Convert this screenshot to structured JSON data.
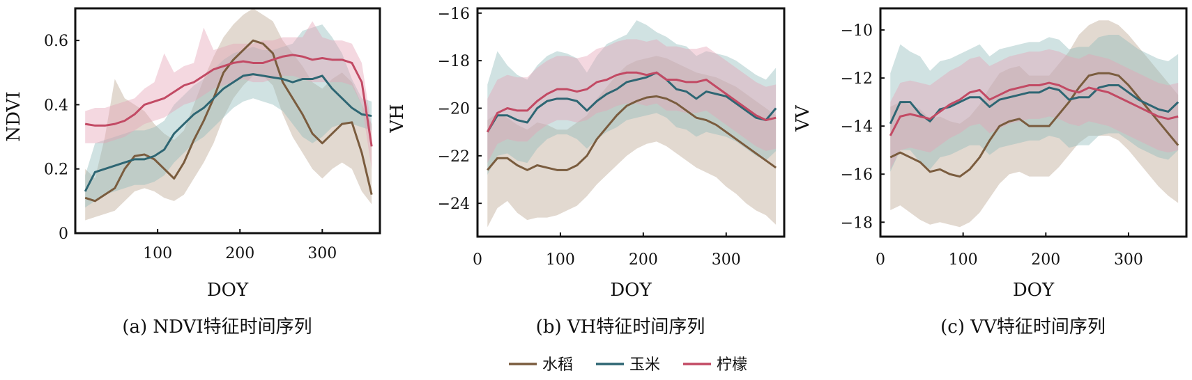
{
  "colors": {
    "rice": "#7a5c3e",
    "corn": "#2e6673",
    "lemon": "#c24a64",
    "rice_band": "#b9a58e",
    "corn_band": "#8fb9bb",
    "lemon_band": "#e4a3b4"
  },
  "legend": {
    "items": [
      {
        "key": "rice",
        "label": "水稻"
      },
      {
        "key": "corn",
        "label": "玉米"
      },
      {
        "key": "lemon",
        "label": "柠檬"
      }
    ]
  },
  "chart_data": [
    {
      "type": "line",
      "caption": "(a) NDVI特征时间序列",
      "xlabel": "DOY",
      "ylabel": "NDVI",
      "xlim": [
        0,
        370
      ],
      "ylim": [
        0,
        0.7
      ],
      "xticks": [
        100,
        200,
        300
      ],
      "yticks": [
        0,
        0.2,
        0.4,
        0.6
      ],
      "ytick_labels": [
        "0",
        "0.2",
        "0.4",
        "0.6"
      ],
      "x": [
        12,
        24,
        36,
        48,
        60,
        72,
        84,
        96,
        108,
        120,
        132,
        144,
        156,
        168,
        180,
        192,
        204,
        216,
        228,
        240,
        252,
        264,
        276,
        288,
        300,
        312,
        324,
        336,
        348,
        360
      ],
      "series": [
        {
          "key": "rice",
          "values": [
            0.11,
            0.1,
            0.12,
            0.14,
            0.2,
            0.24,
            0.245,
            0.23,
            0.2,
            0.17,
            0.22,
            0.29,
            0.35,
            0.42,
            0.5,
            0.54,
            0.57,
            0.6,
            0.59,
            0.56,
            0.47,
            0.42,
            0.37,
            0.31,
            0.28,
            0.31,
            0.34,
            0.345,
            0.25,
            0.12
          ],
          "lower": [
            0.04,
            0.05,
            0.06,
            0.07,
            0.1,
            0.13,
            0.14,
            0.13,
            0.11,
            0.1,
            0.12,
            0.17,
            0.22,
            0.28,
            0.36,
            0.42,
            0.46,
            0.49,
            0.49,
            0.46,
            0.37,
            0.3,
            0.25,
            0.2,
            0.17,
            0.2,
            0.22,
            0.2,
            0.13,
            0.09
          ],
          "upper": [
            0.2,
            0.17,
            0.3,
            0.48,
            0.42,
            0.4,
            0.38,
            0.34,
            0.31,
            0.29,
            0.32,
            0.4,
            0.48,
            0.55,
            0.61,
            0.65,
            0.68,
            0.7,
            0.68,
            0.66,
            0.6,
            0.56,
            0.52,
            0.47,
            0.45,
            0.48,
            0.5,
            0.47,
            0.4,
            0.34
          ]
        },
        {
          "key": "corn",
          "values": [
            0.13,
            0.19,
            0.2,
            0.21,
            0.22,
            0.23,
            0.23,
            0.24,
            0.26,
            0.31,
            0.34,
            0.37,
            0.39,
            0.42,
            0.45,
            0.47,
            0.49,
            0.495,
            0.49,
            0.485,
            0.48,
            0.47,
            0.48,
            0.48,
            0.49,
            0.45,
            0.42,
            0.39,
            0.37,
            0.365
          ],
          "lower": [
            0.08,
            0.1,
            0.12,
            0.13,
            0.14,
            0.15,
            0.15,
            0.16,
            0.18,
            0.22,
            0.25,
            0.28,
            0.3,
            0.33,
            0.36,
            0.39,
            0.41,
            0.42,
            0.41,
            0.4,
            0.38,
            0.34,
            0.3,
            0.28,
            0.3,
            0.33,
            0.34,
            0.34,
            0.33,
            0.32
          ],
          "upper": [
            0.18,
            0.28,
            0.29,
            0.3,
            0.31,
            0.32,
            0.32,
            0.33,
            0.35,
            0.4,
            0.43,
            0.46,
            0.48,
            0.51,
            0.54,
            0.56,
            0.57,
            0.58,
            0.57,
            0.57,
            0.58,
            0.59,
            0.63,
            0.64,
            0.65,
            0.61,
            0.56,
            0.48,
            0.42,
            0.41
          ]
        },
        {
          "key": "lemon",
          "values": [
            0.34,
            0.335,
            0.335,
            0.34,
            0.35,
            0.37,
            0.4,
            0.41,
            0.42,
            0.44,
            0.46,
            0.47,
            0.49,
            0.51,
            0.52,
            0.53,
            0.535,
            0.53,
            0.53,
            0.54,
            0.55,
            0.555,
            0.55,
            0.54,
            0.545,
            0.54,
            0.54,
            0.53,
            0.47,
            0.27
          ],
          "lower": [
            0.28,
            0.28,
            0.28,
            0.29,
            0.3,
            0.32,
            0.34,
            0.35,
            0.36,
            0.38,
            0.4,
            0.41,
            0.43,
            0.45,
            0.46,
            0.47,
            0.48,
            0.47,
            0.47,
            0.48,
            0.49,
            0.49,
            0.48,
            0.47,
            0.47,
            0.47,
            0.47,
            0.46,
            0.4,
            0.2
          ],
          "upper": [
            0.38,
            0.39,
            0.39,
            0.4,
            0.41,
            0.42,
            0.45,
            0.47,
            0.56,
            0.5,
            0.52,
            0.53,
            0.64,
            0.57,
            0.58,
            0.59,
            0.59,
            0.59,
            0.6,
            0.6,
            0.61,
            0.61,
            0.61,
            0.66,
            0.61,
            0.6,
            0.6,
            0.59,
            0.53,
            0.33
          ]
        }
      ]
    },
    {
      "type": "line",
      "caption": "(b) VH特征时间序列",
      "xlabel": "DOY",
      "ylabel": "VH",
      "xlim": [
        0,
        370
      ],
      "ylim": [
        -25.4,
        -15.8
      ],
      "xticks": [
        0,
        100,
        200,
        300
      ],
      "yticks": [
        -24,
        -22,
        -20,
        -18,
        -16
      ],
      "ytick_labels": [
        "−24",
        "−22",
        "−20",
        "−18",
        "−16"
      ],
      "x": [
        12,
        24,
        36,
        48,
        60,
        72,
        84,
        96,
        108,
        120,
        132,
        144,
        156,
        168,
        180,
        192,
        204,
        216,
        228,
        240,
        252,
        264,
        276,
        288,
        300,
        312,
        324,
        336,
        348,
        360
      ],
      "series": [
        {
          "key": "rice",
          "values": [
            -22.6,
            -22.1,
            -22.1,
            -22.4,
            -22.6,
            -22.4,
            -22.5,
            -22.6,
            -22.6,
            -22.4,
            -22.0,
            -21.3,
            -20.8,
            -20.3,
            -19.9,
            -19.7,
            -19.55,
            -19.5,
            -19.6,
            -19.8,
            -20.1,
            -20.4,
            -20.5,
            -20.7,
            -21.0,
            -21.3,
            -21.6,
            -21.9,
            -22.2,
            -22.5
          ],
          "lower": [
            -25.0,
            -24.2,
            -23.9,
            -24.4,
            -24.7,
            -24.6,
            -24.6,
            -24.5,
            -24.3,
            -24.1,
            -23.7,
            -23.2,
            -22.8,
            -22.4,
            -22.0,
            -21.7,
            -21.5,
            -21.4,
            -21.6,
            -21.9,
            -22.2,
            -22.5,
            -22.7,
            -22.9,
            -23.3,
            -23.6,
            -24.0,
            -24.3,
            -24.5,
            -24.9
          ],
          "upper": [
            -20.5,
            -20.2,
            -20.4,
            -20.7,
            -20.9,
            -20.6,
            -20.7,
            -20.9,
            -20.9,
            -20.6,
            -20.3,
            -19.6,
            -19.1,
            -18.6,
            -18.2,
            -18.0,
            -17.9,
            -17.8,
            -17.9,
            -18.1,
            -18.3,
            -18.5,
            -18.6,
            -18.7,
            -18.9,
            -19.1,
            -19.4,
            -19.7,
            -20.0,
            -20.3
          ]
        },
        {
          "key": "corn",
          "values": [
            -21.0,
            -20.3,
            -20.3,
            -20.5,
            -20.6,
            -20.0,
            -19.7,
            -19.6,
            -19.6,
            -19.7,
            -20.1,
            -19.7,
            -19.4,
            -19.2,
            -18.9,
            -18.8,
            -18.7,
            -18.5,
            -18.8,
            -19.2,
            -19.3,
            -19.6,
            -19.3,
            -19.4,
            -19.5,
            -19.8,
            -20.1,
            -20.4,
            -20.5,
            -20.0
          ],
          "lower": [
            -22.8,
            -22.0,
            -21.9,
            -22.2,
            -22.3,
            -21.7,
            -21.3,
            -21.1,
            -21.1,
            -21.3,
            -21.7,
            -21.3,
            -21.0,
            -20.8,
            -20.5,
            -20.4,
            -20.3,
            -20.2,
            -20.4,
            -20.8,
            -20.9,
            -21.2,
            -21.0,
            -21.1,
            -21.2,
            -21.4,
            -21.7,
            -22.0,
            -22.2,
            -21.8
          ],
          "upper": [
            -19.0,
            -17.6,
            -18.2,
            -18.6,
            -18.8,
            -18.2,
            -17.8,
            -17.6,
            -17.7,
            -17.9,
            -18.5,
            -17.8,
            -17.3,
            -17.1,
            -16.9,
            -16.3,
            -16.5,
            -16.8,
            -17.0,
            -17.3,
            -17.4,
            -17.8,
            -17.6,
            -17.7,
            -17.8,
            -18.0,
            -18.3,
            -18.6,
            -18.8,
            -18.3
          ]
        },
        {
          "key": "lemon",
          "values": [
            -21.0,
            -20.2,
            -20.0,
            -20.1,
            -20.1,
            -19.7,
            -19.4,
            -19.2,
            -19.2,
            -19.3,
            -19.2,
            -18.9,
            -18.8,
            -18.6,
            -18.5,
            -18.5,
            -18.6,
            -18.5,
            -18.8,
            -18.8,
            -18.9,
            -18.9,
            -18.8,
            -19.1,
            -19.4,
            -19.7,
            -20.0,
            -20.3,
            -20.5,
            -20.4
          ],
          "lower": [
            -22.3,
            -21.5,
            -21.3,
            -21.4,
            -21.4,
            -21.0,
            -20.7,
            -20.5,
            -20.5,
            -20.6,
            -20.5,
            -20.2,
            -20.1,
            -19.9,
            -19.8,
            -19.8,
            -19.9,
            -19.8,
            -20.1,
            -20.1,
            -20.2,
            -20.2,
            -20.1,
            -20.4,
            -20.7,
            -21.0,
            -21.3,
            -21.6,
            -21.8,
            -21.7
          ],
          "upper": [
            -19.6,
            -18.8,
            -18.6,
            -18.7,
            -18.7,
            -18.3,
            -18.0,
            -17.8,
            -17.8,
            -17.9,
            -17.8,
            -17.5,
            -17.4,
            -17.2,
            -17.1,
            -17.1,
            -17.2,
            -17.1,
            -17.4,
            -17.4,
            -17.5,
            -17.5,
            -17.4,
            -17.7,
            -18.0,
            -18.3,
            -18.6,
            -18.9,
            -19.1,
            -19.0
          ]
        }
      ]
    },
    {
      "type": "line",
      "caption": "(c) VV特征时间序列",
      "xlabel": "DOY",
      "ylabel": "VV",
      "xlim": [
        0,
        370
      ],
      "ylim": [
        -18.6,
        -9.1
      ],
      "xticks": [
        0,
        100,
        200,
        300
      ],
      "yticks": [
        -18,
        -16,
        -14,
        -12,
        -10
      ],
      "ytick_labels": [
        "−18",
        "−16",
        "−14",
        "−12",
        "−10"
      ],
      "x": [
        12,
        24,
        36,
        48,
        60,
        72,
        84,
        96,
        108,
        120,
        132,
        144,
        156,
        168,
        180,
        192,
        204,
        216,
        228,
        240,
        252,
        264,
        276,
        288,
        300,
        312,
        324,
        336,
        348,
        360
      ],
      "series": [
        {
          "key": "rice",
          "values": [
            -15.3,
            -15.1,
            -15.3,
            -15.5,
            -15.9,
            -15.8,
            -16.0,
            -16.1,
            -15.8,
            -15.3,
            -14.6,
            -14.0,
            -13.8,
            -13.7,
            -14.0,
            -14.0,
            -14.0,
            -13.5,
            -13.0,
            -12.4,
            -11.9,
            -11.8,
            -11.8,
            -11.9,
            -12.3,
            -12.8,
            -13.3,
            -13.8,
            -14.3,
            -14.8
          ],
          "lower": [
            -17.5,
            -17.3,
            -17.6,
            -17.9,
            -18.1,
            -18.0,
            -18.1,
            -18.2,
            -18.0,
            -17.6,
            -17.0,
            -16.4,
            -16.0,
            -15.9,
            -16.1,
            -16.1,
            -16.1,
            -15.7,
            -15.2,
            -14.7,
            -14.4,
            -14.4,
            -14.4,
            -14.6,
            -15.0,
            -15.5,
            -16.0,
            -16.5,
            -16.9,
            -17.2
          ],
          "upper": [
            -13.2,
            -13.0,
            -13.1,
            -13.3,
            -13.7,
            -13.6,
            -13.8,
            -13.9,
            -13.6,
            -13.1,
            -12.4,
            -11.8,
            -11.6,
            -11.5,
            -11.9,
            -11.9,
            -11.9,
            -11.4,
            -10.9,
            -10.2,
            -9.8,
            -9.6,
            -9.6,
            -9.8,
            -10.2,
            -10.7,
            -11.2,
            -11.7,
            -12.2,
            -12.7
          ]
        },
        {
          "key": "corn",
          "values": [
            -13.9,
            -13.0,
            -13.0,
            -13.5,
            -13.8,
            -13.3,
            -13.2,
            -13.0,
            -12.8,
            -12.8,
            -13.2,
            -12.9,
            -12.8,
            -12.7,
            -12.6,
            -12.6,
            -12.4,
            -12.5,
            -12.9,
            -12.8,
            -12.8,
            -12.4,
            -12.3,
            -12.3,
            -12.6,
            -12.9,
            -13.1,
            -13.3,
            -13.4,
            -13.0
          ],
          "lower": [
            -15.9,
            -15.0,
            -15.0,
            -15.5,
            -15.8,
            -15.3,
            -15.2,
            -15.0,
            -14.8,
            -14.8,
            -15.2,
            -14.9,
            -14.8,
            -14.7,
            -14.6,
            -14.6,
            -14.4,
            -14.5,
            -14.9,
            -14.8,
            -14.8,
            -14.4,
            -14.3,
            -14.3,
            -14.6,
            -14.9,
            -15.1,
            -15.3,
            -15.4,
            -15.0
          ],
          "upper": [
            -11.8,
            -10.6,
            -10.9,
            -11.1,
            -11.7,
            -11.3,
            -11.2,
            -11.0,
            -10.8,
            -10.6,
            -11.1,
            -10.8,
            -10.7,
            -10.6,
            -10.5,
            -10.5,
            -10.3,
            -10.4,
            -10.8,
            -10.7,
            -10.7,
            -10.3,
            -10.2,
            -10.2,
            -10.5,
            -10.8,
            -11.0,
            -11.2,
            -11.3,
            -11.0
          ]
        },
        {
          "key": "lemon",
          "values": [
            -14.4,
            -13.6,
            -13.5,
            -13.6,
            -13.7,
            -13.4,
            -13.1,
            -12.9,
            -12.6,
            -12.5,
            -12.9,
            -12.7,
            -12.5,
            -12.4,
            -12.3,
            -12.3,
            -12.2,
            -12.3,
            -12.5,
            -12.6,
            -12.4,
            -12.5,
            -12.6,
            -12.8,
            -13.0,
            -13.2,
            -13.4,
            -13.6,
            -13.7,
            -13.6
          ],
          "lower": [
            -15.8,
            -15.0,
            -14.9,
            -15.0,
            -15.1,
            -14.8,
            -14.5,
            -14.3,
            -14.0,
            -13.9,
            -14.3,
            -14.1,
            -13.9,
            -13.8,
            -13.7,
            -13.7,
            -13.6,
            -13.7,
            -13.9,
            -14.0,
            -13.8,
            -13.9,
            -14.0,
            -14.2,
            -14.4,
            -14.6,
            -14.8,
            -15.0,
            -15.1,
            -15.0
          ],
          "upper": [
            -13.0,
            -12.2,
            -12.1,
            -12.2,
            -12.3,
            -12.0,
            -11.7,
            -11.5,
            -11.2,
            -11.1,
            -11.5,
            -11.3,
            -11.1,
            -11.0,
            -10.9,
            -10.9,
            -10.8,
            -10.9,
            -11.1,
            -11.2,
            -11.0,
            -11.1,
            -11.2,
            -11.4,
            -11.6,
            -11.8,
            -12.0,
            -12.2,
            -12.3,
            -12.2
          ]
        }
      ]
    }
  ]
}
